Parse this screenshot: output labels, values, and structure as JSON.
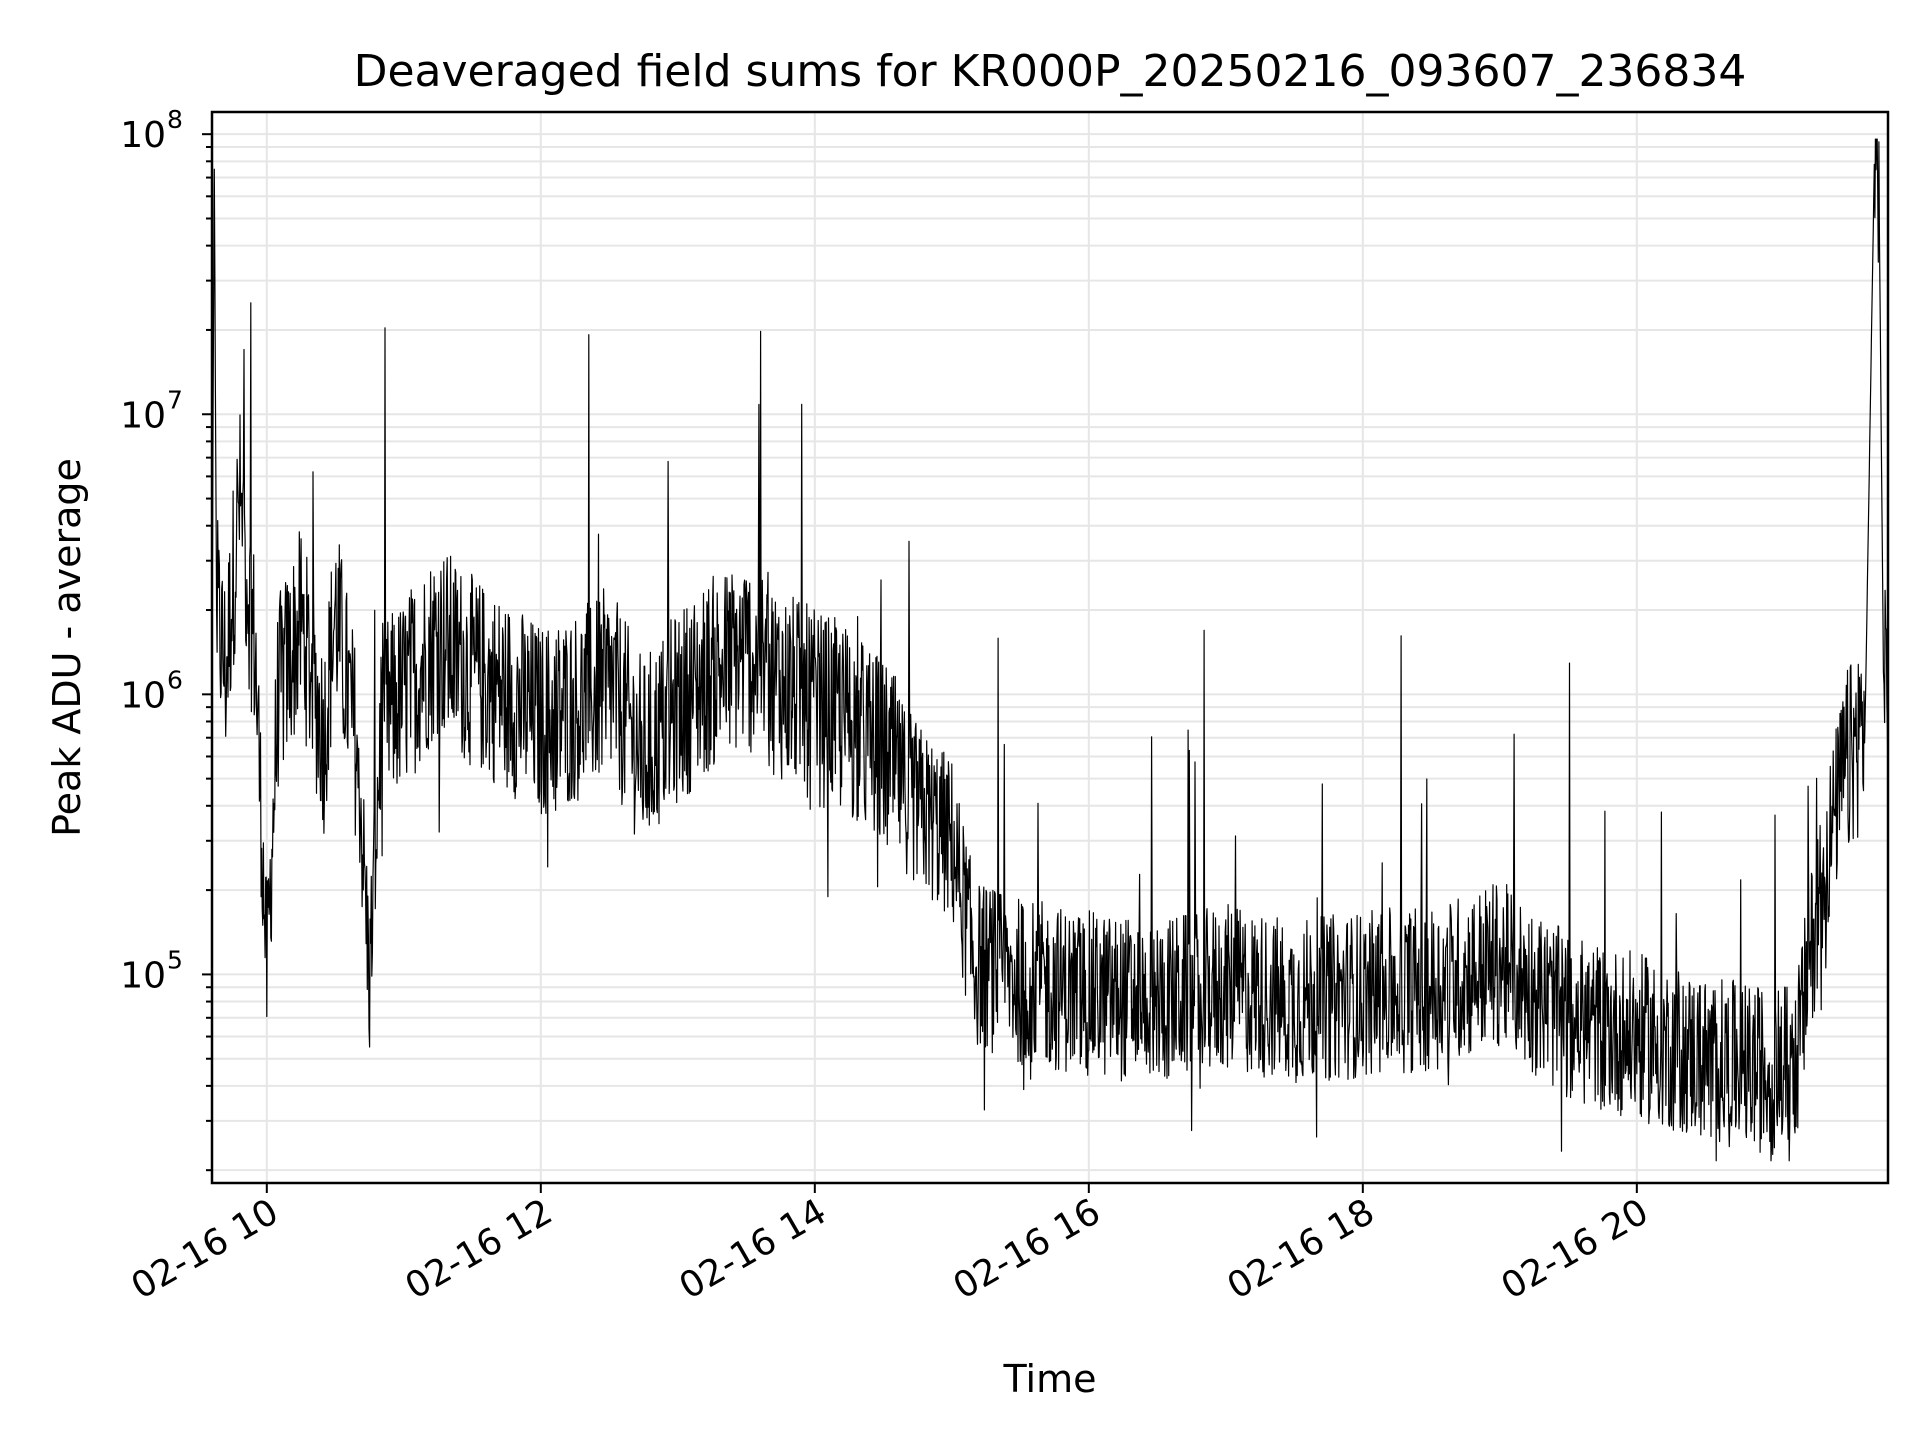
{
  "chart_data": {
    "type": "line",
    "title": "Deaveraged field sums for KR000P_20250216_093607_236834",
    "xlabel": "Time",
    "ylabel": "Peak ADU - average",
    "yscale": "log",
    "ylim": [
      18000,
      120000000
    ],
    "xlim": [
      "2025-02-16 09:36",
      "2025-02-16 21:50"
    ],
    "grid": true,
    "grid_color": "#e6e6e6",
    "line_color": "#000000",
    "x_ticks": [
      {
        "value": "2025-02-16 10:00",
        "label": "02-16 10"
      },
      {
        "value": "2025-02-16 12:00",
        "label": "02-16 12"
      },
      {
        "value": "2025-02-16 14:00",
        "label": "02-16 14"
      },
      {
        "value": "2025-02-16 16:00",
        "label": "02-16 16"
      },
      {
        "value": "2025-02-16 18:00",
        "label": "02-16 18"
      },
      {
        "value": "2025-02-16 20:00",
        "label": "02-16 20"
      }
    ],
    "y_ticks": [
      {
        "value": 100000,
        "base": "10",
        "exp": "5"
      },
      {
        "value": 1000000,
        "base": "10",
        "exp": "6"
      },
      {
        "value": 10000000,
        "base": "10",
        "exp": "7"
      },
      {
        "value": 100000000,
        "base": "10",
        "exp": "8"
      }
    ],
    "series": [
      {
        "points": [
          [
            "2025-02-16 09:36",
            1500000
          ],
          [
            "2025-02-16 09:37",
            75000000
          ],
          [
            "2025-02-16 09:38",
            2000000
          ],
          [
            "2025-02-16 09:42",
            1200000
          ],
          [
            "2025-02-16 09:48",
            5000000
          ],
          [
            "2025-02-16 09:55",
            1400000
          ],
          [
            "2025-02-16 10:00",
            100000
          ],
          [
            "2025-02-16 10:05",
            1000000
          ],
          [
            "2025-02-16 10:15",
            1800000
          ],
          [
            "2025-02-16 10:25",
            700000
          ],
          [
            "2025-02-16 10:30",
            2000000
          ],
          [
            "2025-02-16 10:40",
            600000
          ],
          [
            "2025-02-16 10:45",
            95000
          ],
          [
            "2025-02-16 10:50",
            800000
          ],
          [
            "2025-02-16 11:00",
            1000000
          ],
          [
            "2025-02-16 11:15",
            1600000
          ],
          [
            "2025-02-16 11:30",
            1200000
          ],
          [
            "2025-02-16 11:45",
            1000000
          ],
          [
            "2025-02-16 12:00",
            800000
          ],
          [
            "2025-02-16 12:15",
            900000
          ],
          [
            "2025-02-16 12:30",
            1100000
          ],
          [
            "2025-02-16 12:45",
            600000
          ],
          [
            "2025-02-16 13:00",
            900000
          ],
          [
            "2025-02-16 13:15",
            1200000
          ],
          [
            "2025-02-16 13:30",
            1400000
          ],
          [
            "2025-02-16 13:45",
            1100000
          ],
          [
            "2025-02-16 14:00",
            900000
          ],
          [
            "2025-02-16 14:15",
            800000
          ],
          [
            "2025-02-16 14:30",
            600000
          ],
          [
            "2025-02-16 14:45",
            400000
          ],
          [
            "2025-02-16 15:00",
            300000
          ],
          [
            "2025-02-16 15:10",
            110000
          ],
          [
            "2025-02-16 15:30",
            95000
          ],
          [
            "2025-02-16 16:00",
            85000
          ],
          [
            "2025-02-16 16:30",
            80000
          ],
          [
            "2025-02-16 17:00",
            90000
          ],
          [
            "2025-02-16 17:30",
            80000
          ],
          [
            "2025-02-16 18:00",
            85000
          ],
          [
            "2025-02-16 18:30",
            90000
          ],
          [
            "2025-02-16 19:00",
            110000
          ],
          [
            "2025-02-16 19:30",
            70000
          ],
          [
            "2025-02-16 20:00",
            60000
          ],
          [
            "2025-02-16 20:30",
            50000
          ],
          [
            "2025-02-16 21:00",
            45000
          ],
          [
            "2025-02-16 21:10",
            50000
          ],
          [
            "2025-02-16 21:20",
            200000
          ],
          [
            "2025-02-16 21:30",
            500000
          ],
          [
            "2025-02-16 21:40",
            800000
          ],
          [
            "2025-02-16 21:44",
            78000000
          ],
          [
            "2025-02-16 21:46",
            75000000
          ],
          [
            "2025-02-16 21:48",
            1200000
          ],
          [
            "2025-02-16 21:50",
            900000
          ]
        ]
      }
    ]
  }
}
